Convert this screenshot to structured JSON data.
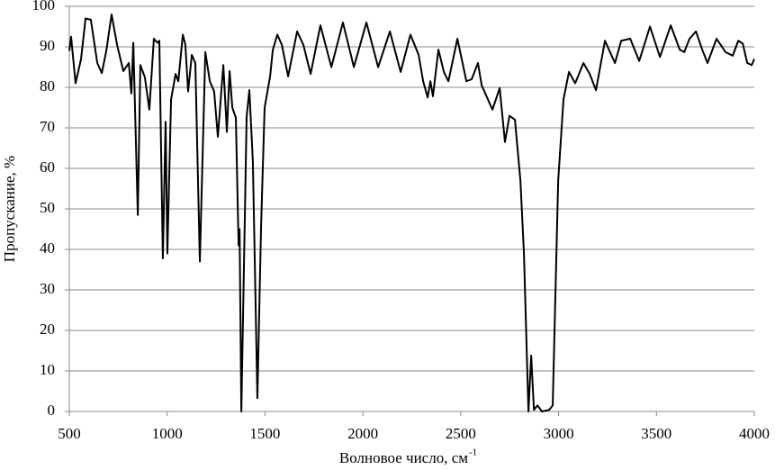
{
  "chart_data": {
    "type": "line",
    "x_label": "Волновое число, см",
    "x_label_superscript": "-1",
    "y_label": "Пропускание, %",
    "xlim": [
      500,
      4000
    ],
    "xticks": [
      500,
      1000,
      1500,
      2000,
      2500,
      3000,
      3500,
      4000
    ],
    "ylim": [
      0,
      100
    ],
    "yticks": [
      0,
      10,
      20,
      30,
      40,
      50,
      60,
      70,
      80,
      90,
      100
    ],
    "grid": true,
    "x": [
      500,
      509,
      532,
      560,
      583,
      610,
      643,
      666,
      689,
      716,
      744,
      776,
      804,
      817,
      827,
      850,
      863,
      886,
      909,
      932,
      951,
      960,
      978,
      992,
      1001,
      1020,
      1043,
      1057,
      1080,
      1093,
      1107,
      1126,
      1144,
      1167,
      1195,
      1218,
      1240,
      1259,
      1287,
      1305,
      1319,
      1333,
      1351,
      1365,
      1370,
      1379,
      1392,
      1406,
      1420,
      1438,
      1461,
      1480,
      1498,
      1526,
      1540,
      1563,
      1586,
      1618,
      1664,
      1696,
      1733,
      1783,
      1839,
      1898,
      1954,
      2018,
      2078,
      2138,
      2193,
      2243,
      2285,
      2308,
      2331,
      2345,
      2358,
      2386,
      2414,
      2437,
      2483,
      2529,
      2556,
      2588,
      2607,
      2639,
      2662,
      2699,
      2726,
      2749,
      2777,
      2805,
      2823,
      2846,
      2860,
      2874,
      2892,
      2915,
      2952,
      2970,
      2998,
      3025,
      3053,
      3085,
      3127,
      3159,
      3191,
      3237,
      3288,
      3320,
      3366,
      3412,
      3467,
      3518,
      3573,
      3619,
      3642,
      3669,
      3702,
      3734,
      3761,
      3807,
      3853,
      3890,
      3918,
      3941,
      3964,
      3987,
      4000
    ],
    "series": [
      {
        "name": "Пропускание",
        "color": "#000000",
        "values": [
          89,
          92.5,
          81,
          87,
          97,
          96.7,
          86,
          83.5,
          89,
          98,
          90.5,
          84,
          86,
          78.5,
          91,
          48.5,
          85.5,
          82.5,
          74.5,
          92,
          91,
          91.5,
          37.8,
          71.5,
          39,
          77,
          83.3,
          81.5,
          93,
          90.5,
          79,
          88,
          86,
          37,
          88.7,
          81.5,
          79,
          67.8,
          85.5,
          69,
          84,
          75,
          72.5,
          41,
          45,
          0,
          35,
          72.7,
          79.3,
          61.5,
          3.3,
          46,
          75,
          82.7,
          89.3,
          93,
          90.5,
          82.7,
          93.8,
          90.5,
          83.3,
          95.3,
          85,
          96,
          85,
          96,
          85,
          93.8,
          83.8,
          93,
          88,
          81.5,
          77.5,
          81.5,
          77.8,
          89.3,
          83.8,
          81.5,
          92,
          81.5,
          82,
          86,
          80.5,
          77,
          74.5,
          79.8,
          66.5,
          73,
          72,
          57,
          39,
          0,
          13.8,
          0.4,
          1.5,
          0,
          0.4,
          1.5,
          57,
          77,
          83.8,
          81,
          86,
          83.3,
          79.3,
          91.5,
          86,
          91.5,
          92,
          86.5,
          95,
          87.5,
          95.3,
          89.3,
          88.7,
          92,
          93.8,
          89.3,
          86,
          92,
          88.7,
          87.8,
          91.5,
          90.8,
          86,
          85.5,
          87
        ]
      }
    ]
  }
}
